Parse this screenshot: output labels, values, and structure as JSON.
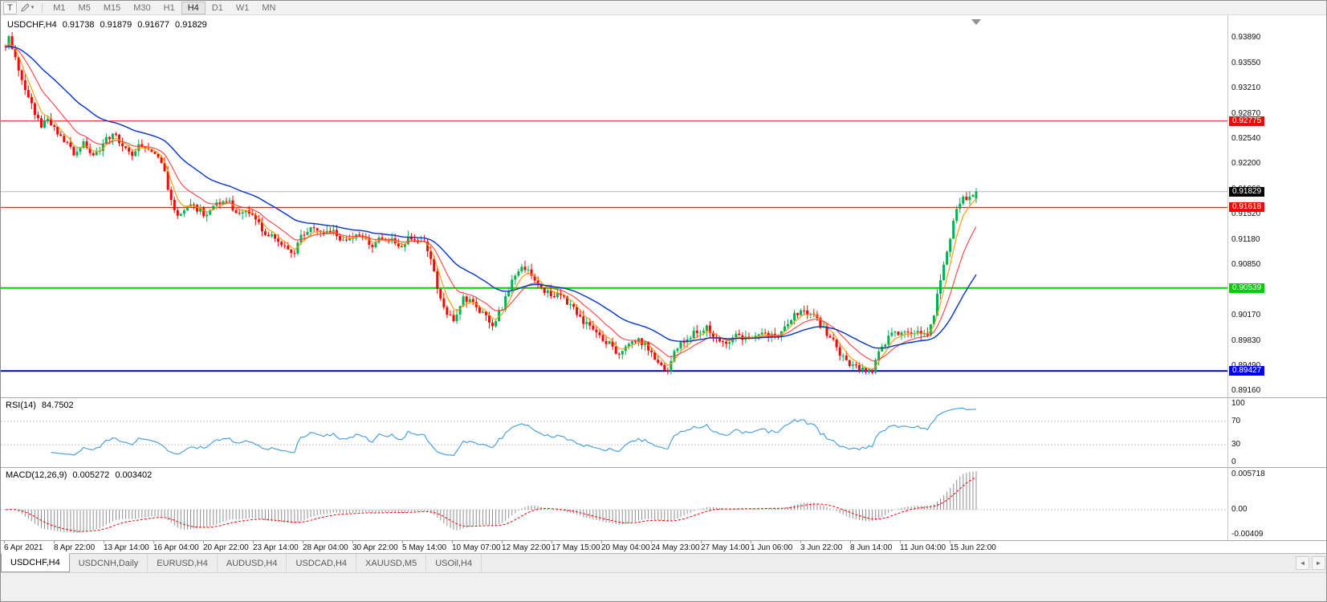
{
  "toolbar": {
    "templates_label": "T",
    "timeframes": [
      "M1",
      "M5",
      "M15",
      "M30",
      "H1",
      "H4",
      "D1",
      "W1",
      "MN"
    ],
    "active_timeframe": "H4"
  },
  "icons": {
    "caret_down": "▾",
    "tab_scroll_left": "◄",
    "tab_scroll_right": "►"
  },
  "chart_data": {
    "type": "candlestick",
    "symbol": "USDCHF",
    "period": "H4",
    "header": {
      "symbol_period": "USDCHF,H4",
      "open": "0.91738",
      "high": "0.91879",
      "low": "0.91677",
      "close": "0.91829"
    },
    "current": {
      "open": 0.91738,
      "high": 0.91879,
      "low": 0.91677,
      "close": 0.91829
    },
    "bid": 0.91829,
    "bid_label": "0.91829",
    "candles": 300,
    "noise": 0.0009,
    "candle_area_end": 1215,
    "colors": {
      "bull": "#00B050",
      "bear": "#FF0000",
      "ma_fast": "#FF9500",
      "ma_mid": "#FF4040",
      "ma_slow": "#0033CC",
      "bid_line": "#b8b8b8"
    },
    "ma_periods": {
      "fast": 5,
      "mid": 13,
      "slow": 34
    },
    "y_ticks": [
      "0.93890",
      "0.93550",
      "0.93210",
      "0.92870",
      "0.92540",
      "0.92200",
      "0.91860",
      "0.91520",
      "0.91180",
      "0.90850",
      "0.90510",
      "0.90170",
      "0.89830",
      "0.89490",
      "0.89160"
    ],
    "x_labels": [
      "6 Apr 2021",
      "8 Apr 22:00",
      "13 Apr 14:00",
      "16 Apr 04:00",
      "20 Apr 22:00",
      "23 Apr 14:00",
      "28 Apr 04:00",
      "30 Apr 22:00",
      "5 May 14:00",
      "10 May 07:00",
      "12 May 22:00",
      "17 May 15:00",
      "20 May 04:00",
      "24 May 23:00",
      "27 May 14:00",
      "1 Jun 06:00",
      "3 Jun 22:00",
      "8 Jun 14:00",
      "11 Jun 04:00",
      "15 Jun 22:00"
    ],
    "horizontal_lines": [
      {
        "name": "resistance-line-upper",
        "price": 0.92775,
        "label": "0.92775",
        "color": "#FF0000",
        "width": 1
      },
      {
        "name": "resistance-line-lower",
        "price": 0.91618,
        "label": "0.91618",
        "color": "#FF0000",
        "width": 1
      },
      {
        "name": "support-line-green",
        "price": 0.90539,
        "label": "0.90539",
        "color": "#00CC00",
        "width": 2
      },
      {
        "name": "support-line-blue",
        "price": 0.89427,
        "label": "0.89427",
        "color": "#0000FF",
        "width": 2
      }
    ],
    "price_anchors": [
      [
        0.0,
        0.9378
      ],
      [
        0.004,
        0.9391
      ],
      [
        0.012,
        0.9352
      ],
      [
        0.022,
        0.931
      ],
      [
        0.03,
        0.9288
      ],
      [
        0.038,
        0.9268
      ],
      [
        0.044,
        0.9282
      ],
      [
        0.052,
        0.9262
      ],
      [
        0.062,
        0.9248
      ],
      [
        0.072,
        0.9232
      ],
      [
        0.08,
        0.9248
      ],
      [
        0.09,
        0.9228
      ],
      [
        0.1,
        0.9246
      ],
      [
        0.11,
        0.9262
      ],
      [
        0.12,
        0.9245
      ],
      [
        0.13,
        0.9232
      ],
      [
        0.14,
        0.9246
      ],
      [
        0.152,
        0.9236
      ],
      [
        0.163,
        0.9218
      ],
      [
        0.172,
        0.9158
      ],
      [
        0.18,
        0.9148
      ],
      [
        0.188,
        0.9168
      ],
      [
        0.198,
        0.9158
      ],
      [
        0.208,
        0.9152
      ],
      [
        0.218,
        0.9168
      ],
      [
        0.228,
        0.9172
      ],
      [
        0.238,
        0.9156
      ],
      [
        0.248,
        0.916
      ],
      [
        0.258,
        0.9142
      ],
      [
        0.268,
        0.9128
      ],
      [
        0.278,
        0.9118
      ],
      [
        0.288,
        0.9106
      ],
      [
        0.296,
        0.9098
      ],
      [
        0.306,
        0.9126
      ],
      [
        0.316,
        0.9136
      ],
      [
        0.326,
        0.9124
      ],
      [
        0.336,
        0.913
      ],
      [
        0.346,
        0.9114
      ],
      [
        0.356,
        0.9122
      ],
      [
        0.366,
        0.9126
      ],
      [
        0.376,
        0.9108
      ],
      [
        0.386,
        0.9124
      ],
      [
        0.396,
        0.9118
      ],
      [
        0.406,
        0.9108
      ],
      [
        0.416,
        0.9124
      ],
      [
        0.426,
        0.9118
      ],
      [
        0.436,
        0.9106
      ],
      [
        0.444,
        0.9058
      ],
      [
        0.452,
        0.9024
      ],
      [
        0.462,
        0.9008
      ],
      [
        0.472,
        0.904
      ],
      [
        0.482,
        0.9034
      ],
      [
        0.492,
        0.9018
      ],
      [
        0.502,
        0.9004
      ],
      [
        0.512,
        0.903
      ],
      [
        0.522,
        0.9062
      ],
      [
        0.532,
        0.9086
      ],
      [
        0.542,
        0.907
      ],
      [
        0.552,
        0.9052
      ],
      [
        0.562,
        0.9046
      ],
      [
        0.572,
        0.9044
      ],
      [
        0.582,
        0.903
      ],
      [
        0.592,
        0.9014
      ],
      [
        0.602,
        0.9
      ],
      [
        0.612,
        0.899
      ],
      [
        0.622,
        0.898
      ],
      [
        0.632,
        0.8964
      ],
      [
        0.642,
        0.8976
      ],
      [
        0.652,
        0.8986
      ],
      [
        0.662,
        0.8974
      ],
      [
        0.672,
        0.8954
      ],
      [
        0.682,
        0.8944
      ],
      [
        0.692,
        0.8976
      ],
      [
        0.702,
        0.8986
      ],
      [
        0.712,
        0.8996
      ],
      [
        0.722,
        0.9002
      ],
      [
        0.732,
        0.8986
      ],
      [
        0.742,
        0.898
      ],
      [
        0.752,
        0.899
      ],
      [
        0.762,
        0.8986
      ],
      [
        0.772,
        0.8992
      ],
      [
        0.782,
        0.8996
      ],
      [
        0.792,
        0.8986
      ],
      [
        0.802,
        0.9
      ],
      [
        0.812,
        0.9016
      ],
      [
        0.822,
        0.9026
      ],
      [
        0.832,
        0.9016
      ],
      [
        0.842,
        0.9
      ],
      [
        0.852,
        0.8984
      ],
      [
        0.862,
        0.896
      ],
      [
        0.872,
        0.895
      ],
      [
        0.882,
        0.8944
      ],
      [
        0.892,
        0.894
      ],
      [
        0.902,
        0.8976
      ],
      [
        0.912,
        0.899
      ],
      [
        0.922,
        0.8996
      ],
      [
        0.932,
        0.899
      ],
      [
        0.942,
        0.8996
      ],
      [
        0.95,
        0.899
      ],
      [
        0.956,
        0.9012
      ],
      [
        0.962,
        0.9058
      ],
      [
        0.968,
        0.9092
      ],
      [
        0.974,
        0.9128
      ],
      [
        0.98,
        0.9158
      ],
      [
        0.986,
        0.9176
      ],
      [
        0.993,
        0.9174
      ],
      [
        1.0,
        0.91829
      ]
    ],
    "indicators": {
      "rsi": {
        "name": "RSI(14)",
        "value": "84.7502",
        "period": 14,
        "levels": [
          "100",
          "70",
          "30",
          "0"
        ],
        "color": "#3E9ADE"
      },
      "macd": {
        "name": "MACD(12,26,9)",
        "value": "0.005272",
        "signal_value": "0.003402",
        "axis": [
          "0.005718",
          "0.00",
          "-0.00409"
        ],
        "scale_max": 0.005718,
        "scale_min": -0.00409,
        "histogram_color": "#8f8f8f",
        "signal_color": "#FF0000"
      }
    }
  },
  "tabbar": {
    "tabs": [
      {
        "label": "USDCHF,H4",
        "active": true
      },
      {
        "label": "USDCNH,Daily",
        "active": false
      },
      {
        "label": "EURUSD,H4",
        "active": false
      },
      {
        "label": "AUDUSD,H4",
        "active": false
      },
      {
        "label": "USDCAD,H4",
        "active": false
      },
      {
        "label": "XAUUSD,M5",
        "active": false
      },
      {
        "label": "USOil,H4",
        "active": false
      }
    ]
  }
}
